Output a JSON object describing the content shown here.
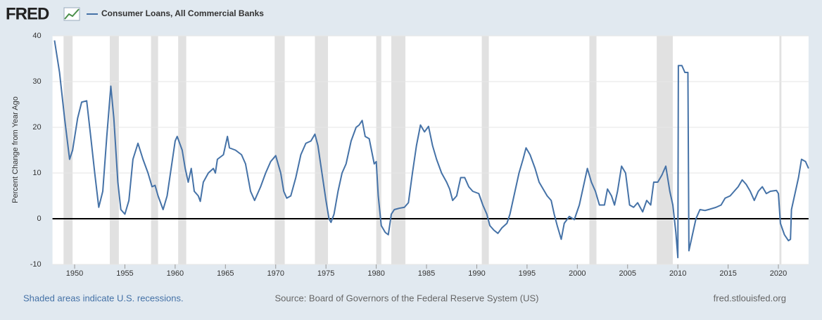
{
  "chart_data": {
    "type": "line",
    "brand": "FRED",
    "ylabel": "Percent Change from Year Ago",
    "note": "Shaded areas indicate U.S. recessions.",
    "source": "Source: Board of Governors of the Federal Reserve System (US)",
    "site": "fred.stlouisfed.org",
    "xlim": [
      1947.8,
      2023.0
    ],
    "xticks": [
      1950,
      1955,
      1960,
      1965,
      1970,
      1975,
      1980,
      1985,
      1990,
      1995,
      2000,
      2005,
      2010,
      2015,
      2020
    ],
    "ylim": [
      -10,
      40
    ],
    "yticks": [
      -10,
      0,
      10,
      20,
      30,
      40
    ],
    "grid": true,
    "recessions": [
      [
        1948.9,
        1949.8
      ],
      [
        1953.5,
        1954.4
      ],
      [
        1957.6,
        1958.3
      ],
      [
        1960.3,
        1961.1
      ],
      [
        1969.9,
        1970.9
      ],
      [
        1973.9,
        1975.2
      ],
      [
        1980.0,
        1980.5
      ],
      [
        1981.5,
        1982.9
      ],
      [
        1990.5,
        1991.2
      ],
      [
        2001.2,
        2001.9
      ],
      [
        2007.9,
        2009.5
      ],
      [
        2020.1,
        2020.3
      ]
    ],
    "x": [
      1948.0,
      1948.5,
      1949.0,
      1949.5,
      1949.8,
      1950.3,
      1950.7,
      1951.2,
      1951.6,
      1952.0,
      1952.4,
      1952.8,
      1953.2,
      1953.6,
      1953.9,
      1954.3,
      1954.6,
      1955.0,
      1955.4,
      1955.8,
      1956.3,
      1956.8,
      1957.3,
      1957.7,
      1958.0,
      1958.3,
      1958.8,
      1959.2,
      1959.6,
      1960.0,
      1960.2,
      1960.7,
      1961.0,
      1961.3,
      1961.6,
      1961.9,
      1962.3,
      1962.5,
      1962.8,
      1963.3,
      1963.8,
      1964.0,
      1964.2,
      1964.8,
      1965.2,
      1965.4,
      1966.0,
      1966.6,
      1967.0,
      1967.5,
      1967.9,
      1968.5,
      1969.0,
      1969.5,
      1970.0,
      1970.5,
      1970.8,
      1971.1,
      1971.5,
      1972.0,
      1972.5,
      1973.0,
      1973.5,
      1973.9,
      1974.2,
      1974.6,
      1975.0,
      1975.3,
      1975.5,
      1975.8,
      1976.2,
      1976.6,
      1977.0,
      1977.5,
      1978.0,
      1978.3,
      1978.6,
      1978.9,
      1979.3,
      1979.8,
      1980.0,
      1980.2,
      1980.5,
      1980.9,
      1981.2,
      1981.5,
      1981.8,
      1982.3,
      1982.8,
      1983.2,
      1983.6,
      1984.0,
      1984.4,
      1984.8,
      1985.2,
      1985.6,
      1986.0,
      1986.5,
      1987.0,
      1987.3,
      1987.6,
      1988.0,
      1988.4,
      1988.8,
      1989.2,
      1989.6,
      1990.2,
      1990.6,
      1991.0,
      1991.3,
      1991.7,
      1992.1,
      1992.5,
      1993.0,
      1993.3,
      1993.7,
      1994.2,
      1994.6,
      1994.9,
      1995.3,
      1995.8,
      1996.2,
      1996.6,
      1997.0,
      1997.4,
      1997.7,
      1998.0,
      1998.4,
      1998.7,
      1999.2,
      1999.7,
      2000.2,
      2000.6,
      2001.0,
      2001.4,
      2001.8,
      2002.2,
      2002.7,
      2003.0,
      2003.4,
      2003.7,
      2004.0,
      2004.4,
      2004.8,
      2005.2,
      2005.6,
      2006.0,
      2006.5,
      2006.9,
      2007.3,
      2007.6,
      2008.0,
      2008.4,
      2008.8,
      2009.2,
      2009.5,
      2009.8,
      2010.0,
      2010.05,
      2010.4,
      2010.7,
      2011.0,
      2011.1,
      2011.4,
      2011.8,
      2012.2,
      2012.7,
      2013.2,
      2013.8,
      2014.3,
      2014.7,
      2015.2,
      2015.6,
      2016.0,
      2016.4,
      2016.8,
      2017.2,
      2017.6,
      2018.0,
      2018.4,
      2018.8,
      2019.2,
      2019.8,
      2020.0,
      2020.2,
      2020.6,
      2021.0,
      2021.2,
      2021.3,
      2021.7,
      2022.0,
      2022.3,
      2022.7,
      2023.0
    ],
    "series": [
      {
        "name": "Consumer Loans, All Commercial Banks",
        "color": "#4572a7",
        "values": [
          39,
          32,
          22,
          13,
          15,
          22,
          25.5,
          25.8,
          18,
          10,
          2.5,
          6,
          18,
          29,
          22,
          8,
          2,
          1,
          4,
          13,
          16.5,
          13,
          10,
          7,
          7.3,
          5,
          2,
          5,
          11,
          17,
          18,
          15,
          11,
          8,
          11,
          6,
          5,
          3.8,
          8,
          10,
          11,
          10,
          13,
          14,
          18,
          15.5,
          15,
          14,
          12,
          6,
          4,
          7,
          10,
          12.5,
          13.8,
          10,
          6,
          4.5,
          5,
          9,
          14,
          16.5,
          17,
          18.5,
          16,
          10,
          4,
          0,
          -0.8,
          1,
          6,
          10,
          12,
          17,
          20,
          20.5,
          21.5,
          18,
          17.5,
          12,
          12.5,
          5,
          -1.5,
          -3,
          -3.5,
          1,
          2,
          2.3,
          2.5,
          3.5,
          10,
          16,
          20.5,
          19,
          20.2,
          16,
          13,
          10,
          8,
          6.5,
          4,
          5,
          9,
          9,
          7,
          6,
          5.5,
          3,
          1,
          -1.5,
          -2.5,
          -3.2,
          -2,
          -1,
          1,
          5,
          10,
          13,
          15.5,
          14,
          11,
          8,
          6.5,
          5,
          4,
          1,
          -1.5,
          -4.5,
          -1,
          0.5,
          -0.2,
          3,
          7,
          11,
          8,
          6,
          3,
          3,
          6.5,
          5,
          3,
          6,
          11.5,
          10,
          3,
          2.5,
          3.5,
          1.5,
          4,
          3,
          8,
          8,
          9.5,
          11.5,
          6,
          3,
          -3,
          -8.5,
          33.5,
          33.5,
          32,
          32,
          -7,
          -4,
          0,
          2,
          1.8,
          2.1,
          2.5,
          3,
          4.5,
          5,
          6,
          7,
          8.5,
          7.5,
          6,
          4,
          6,
          7,
          5.5,
          6,
          6.2,
          5.5,
          -1,
          -3.5,
          -4.8,
          -4.5,
          2,
          6,
          9,
          13,
          12.5,
          11
        ]
      }
    ]
  }
}
